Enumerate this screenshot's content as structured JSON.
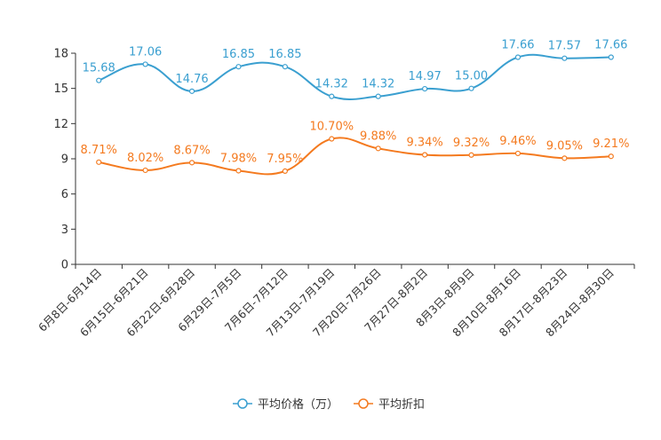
{
  "chart_data": {
    "type": "line",
    "categories": [
      "6月8日-6月14日",
      "6月15日-6月21日",
      "6月22日-6月28日",
      "6月29日-7月5日",
      "7月6日-7月12日",
      "7月13日-7月19日",
      "7月20日-7月26日",
      "7月27日-8月2日",
      "8月3日-8月9日",
      "8月10日-8月16日",
      "8月17日-8月23日",
      "8月24日-8月30日"
    ],
    "ylim": [
      0,
      18
    ],
    "yticks": [
      0,
      3,
      6,
      9,
      12,
      15,
      18
    ],
    "series": [
      {
        "name": "平均价格（万）",
        "color": "#3a9fd0",
        "values": [
          15.68,
          17.06,
          14.76,
          16.85,
          16.85,
          14.32,
          14.32,
          14.97,
          15.0,
          17.66,
          17.57,
          17.66
        ],
        "labels": [
          "15.68",
          "17.06",
          "14.76",
          "16.85",
          "16.85",
          "14.32",
          "14.32",
          "14.97",
          "15.00",
          "17.66",
          "17.57",
          "17.66"
        ]
      },
      {
        "name": "平均折扣",
        "color": "#f47a1f",
        "values": [
          8.71,
          8.02,
          8.67,
          7.98,
          7.95,
          10.7,
          9.88,
          9.34,
          9.32,
          9.46,
          9.05,
          9.21
        ],
        "labels": [
          "8.71%",
          "8.02%",
          "8.67%",
          "7.98%",
          "7.95%",
          "10.70%",
          "9.88%",
          "9.34%",
          "9.32%",
          "9.46%",
          "9.05%",
          "9.21%"
        ]
      }
    ]
  }
}
